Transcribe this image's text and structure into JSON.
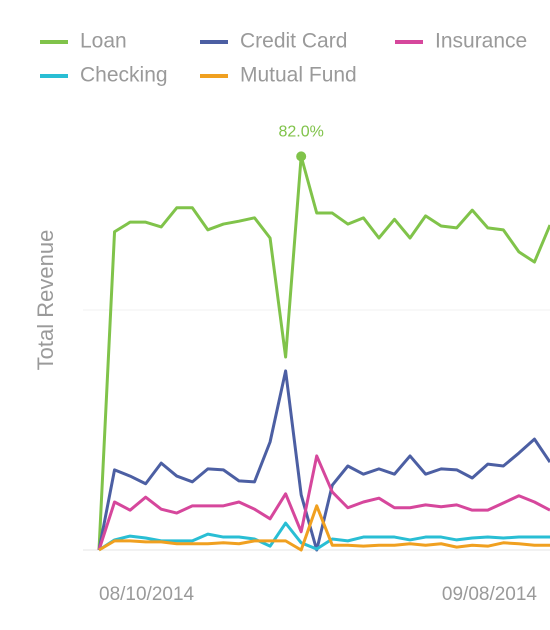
{
  "chart_data": {
    "type": "line",
    "y_label": "Total Revenue",
    "categories": [
      "08/10/2014",
      null,
      null,
      null,
      null,
      null,
      null,
      null,
      null,
      null,
      null,
      null,
      null,
      null,
      null,
      null,
      null,
      null,
      null,
      null,
      null,
      null,
      null,
      null,
      null,
      null,
      null,
      null,
      null,
      "09/08/2014"
    ],
    "ylim": [
      0,
      100
    ],
    "yticks": [
      0,
      50
    ],
    "grid": true,
    "series": [
      {
        "name": "Loan",
        "color": "#80c34a",
        "values": [
          0,
          66.3,
          68.3,
          68.3,
          67.3,
          71.3,
          71.3,
          66.7,
          67.9,
          68.5,
          69.2,
          65.0,
          40.2,
          82.0,
          70.2,
          70.2,
          67.9,
          69.2,
          65.0,
          68.9,
          65.0,
          69.6,
          67.5,
          67.1,
          70.8,
          67.1,
          66.7,
          62.1,
          60.0,
          67.7
        ],
        "value_labels": [
          null,
          null,
          null,
          null,
          null,
          null,
          null,
          null,
          null,
          null,
          null,
          null,
          null,
          "82.0%",
          null,
          null,
          null,
          null,
          null,
          null,
          null,
          null,
          null,
          null,
          null,
          null,
          null,
          null,
          null,
          null
        ]
      },
      {
        "name": "Credit Card",
        "color": "#4c5fa3",
        "values": [
          0,
          16.7,
          15.4,
          13.8,
          18.1,
          15.4,
          14.2,
          16.9,
          16.7,
          14.4,
          14.2,
          22.5,
          37.3,
          11.5,
          0,
          13.5,
          17.5,
          15.8,
          16.9,
          15.8,
          19.6,
          15.8,
          16.9,
          16.7,
          15.0,
          17.9,
          17.5,
          20.2,
          23.1,
          18.3
        ]
      },
      {
        "name": "Insurance",
        "color": "#d6479c",
        "values": [
          0,
          10.0,
          8.3,
          11.0,
          8.5,
          7.7,
          9.2,
          9.2,
          9.2,
          10.0,
          8.5,
          6.5,
          11.7,
          3.8,
          19.6,
          12.1,
          8.8,
          10.0,
          10.8,
          8.8,
          8.8,
          9.4,
          9.0,
          9.4,
          8.3,
          8.3,
          9.8,
          11.3,
          10.0,
          8.3
        ]
      },
      {
        "name": "Checking",
        "color": "#29bed4",
        "values": [
          0,
          2.1,
          2.9,
          2.5,
          1.9,
          1.9,
          1.9,
          3.3,
          2.7,
          2.7,
          2.3,
          0.8,
          5.6,
          1.5,
          0.2,
          2.3,
          1.9,
          2.7,
          2.7,
          2.7,
          2.1,
          2.7,
          2.7,
          2.1,
          2.5,
          2.7,
          2.5,
          2.7,
          2.7,
          2.7
        ]
      },
      {
        "name": "Mutual Fund",
        "color": "#f0a020",
        "values": [
          0,
          1.9,
          1.9,
          1.7,
          1.7,
          1.3,
          1.3,
          1.3,
          1.5,
          1.3,
          1.9,
          1.9,
          1.9,
          0,
          9.2,
          1.0,
          1.0,
          0.8,
          1.0,
          1.0,
          1.3,
          1.0,
          1.3,
          0.6,
          1.0,
          0.8,
          1.5,
          1.3,
          1.0,
          1.0
        ]
      }
    ]
  }
}
